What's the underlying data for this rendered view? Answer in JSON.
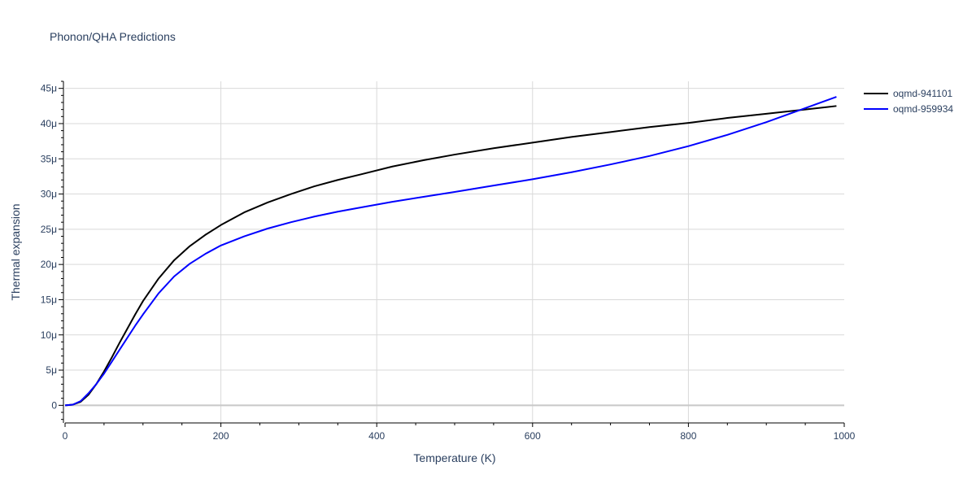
{
  "chart_data": {
    "type": "line",
    "title": "Phonon/QHA Predictions",
    "xlabel": "Temperature (K)",
    "ylabel": "Thermal expansion",
    "xlim": [
      0,
      1000
    ],
    "ylim": [
      -2.5e-06,
      4.6e-05
    ],
    "x_ticks": [
      0,
      200,
      400,
      600,
      800,
      1000
    ],
    "x_tick_labels": [
      "0",
      "200",
      "400",
      "600",
      "800",
      "1000"
    ],
    "y_ticks": [
      0,
      5e-06,
      1e-05,
      1.5e-05,
      2e-05,
      2.5e-05,
      3e-05,
      3.5e-05,
      4e-05,
      4.5e-05
    ],
    "y_tick_labels": [
      "0",
      "5μ",
      "10μ",
      "15μ",
      "20μ",
      "25μ",
      "30μ",
      "35μ",
      "40μ",
      "45μ"
    ],
    "grid": true,
    "legend_position": "top-right",
    "series": [
      {
        "name": "oqmd-941101",
        "color": "#000000",
        "x": [
          0,
          10,
          20,
          30,
          40,
          50,
          60,
          70,
          80,
          90,
          100,
          120,
          140,
          160,
          180,
          200,
          230,
          260,
          290,
          320,
          350,
          380,
          420,
          460,
          500,
          550,
          600,
          650,
          700,
          750,
          800,
          850,
          900,
          950,
          990
        ],
        "y": [
          0,
          1e-07,
          5e-07,
          1.5e-06,
          3e-06,
          4.8e-06,
          6.8e-06,
          8.9e-06,
          1.09e-05,
          1.29e-05,
          1.48e-05,
          1.8e-05,
          2.06e-05,
          2.26e-05,
          2.42e-05,
          2.56e-05,
          2.74e-05,
          2.88e-05,
          3e-05,
          3.11e-05,
          3.2e-05,
          3.28e-05,
          3.39e-05,
          3.48e-05,
          3.56e-05,
          3.65e-05,
          3.73e-05,
          3.81e-05,
          3.88e-05,
          3.95e-05,
          4.01e-05,
          4.08e-05,
          4.14e-05,
          4.2e-05,
          4.25e-05
        ]
      },
      {
        "name": "oqmd-959934",
        "color": "#0000ff",
        "x": [
          0,
          10,
          20,
          30,
          40,
          50,
          60,
          70,
          80,
          90,
          100,
          120,
          140,
          160,
          180,
          200,
          230,
          260,
          290,
          320,
          350,
          380,
          420,
          460,
          500,
          550,
          600,
          650,
          700,
          750,
          800,
          850,
          900,
          950,
          990
        ],
        "y": [
          0,
          1e-07,
          6e-07,
          1.7e-06,
          3e-06,
          4.5e-06,
          6.2e-06,
          7.9e-06,
          9.6e-06,
          1.13e-05,
          1.29e-05,
          1.59e-05,
          1.83e-05,
          2.01e-05,
          2.15e-05,
          2.27e-05,
          2.4e-05,
          2.51e-05,
          2.6e-05,
          2.68e-05,
          2.75e-05,
          2.81e-05,
          2.89e-05,
          2.96e-05,
          3.03e-05,
          3.12e-05,
          3.21e-05,
          3.31e-05,
          3.42e-05,
          3.54e-05,
          3.68e-05,
          3.84e-05,
          4.02e-05,
          4.22e-05,
          4.38e-05
        ]
      }
    ]
  }
}
